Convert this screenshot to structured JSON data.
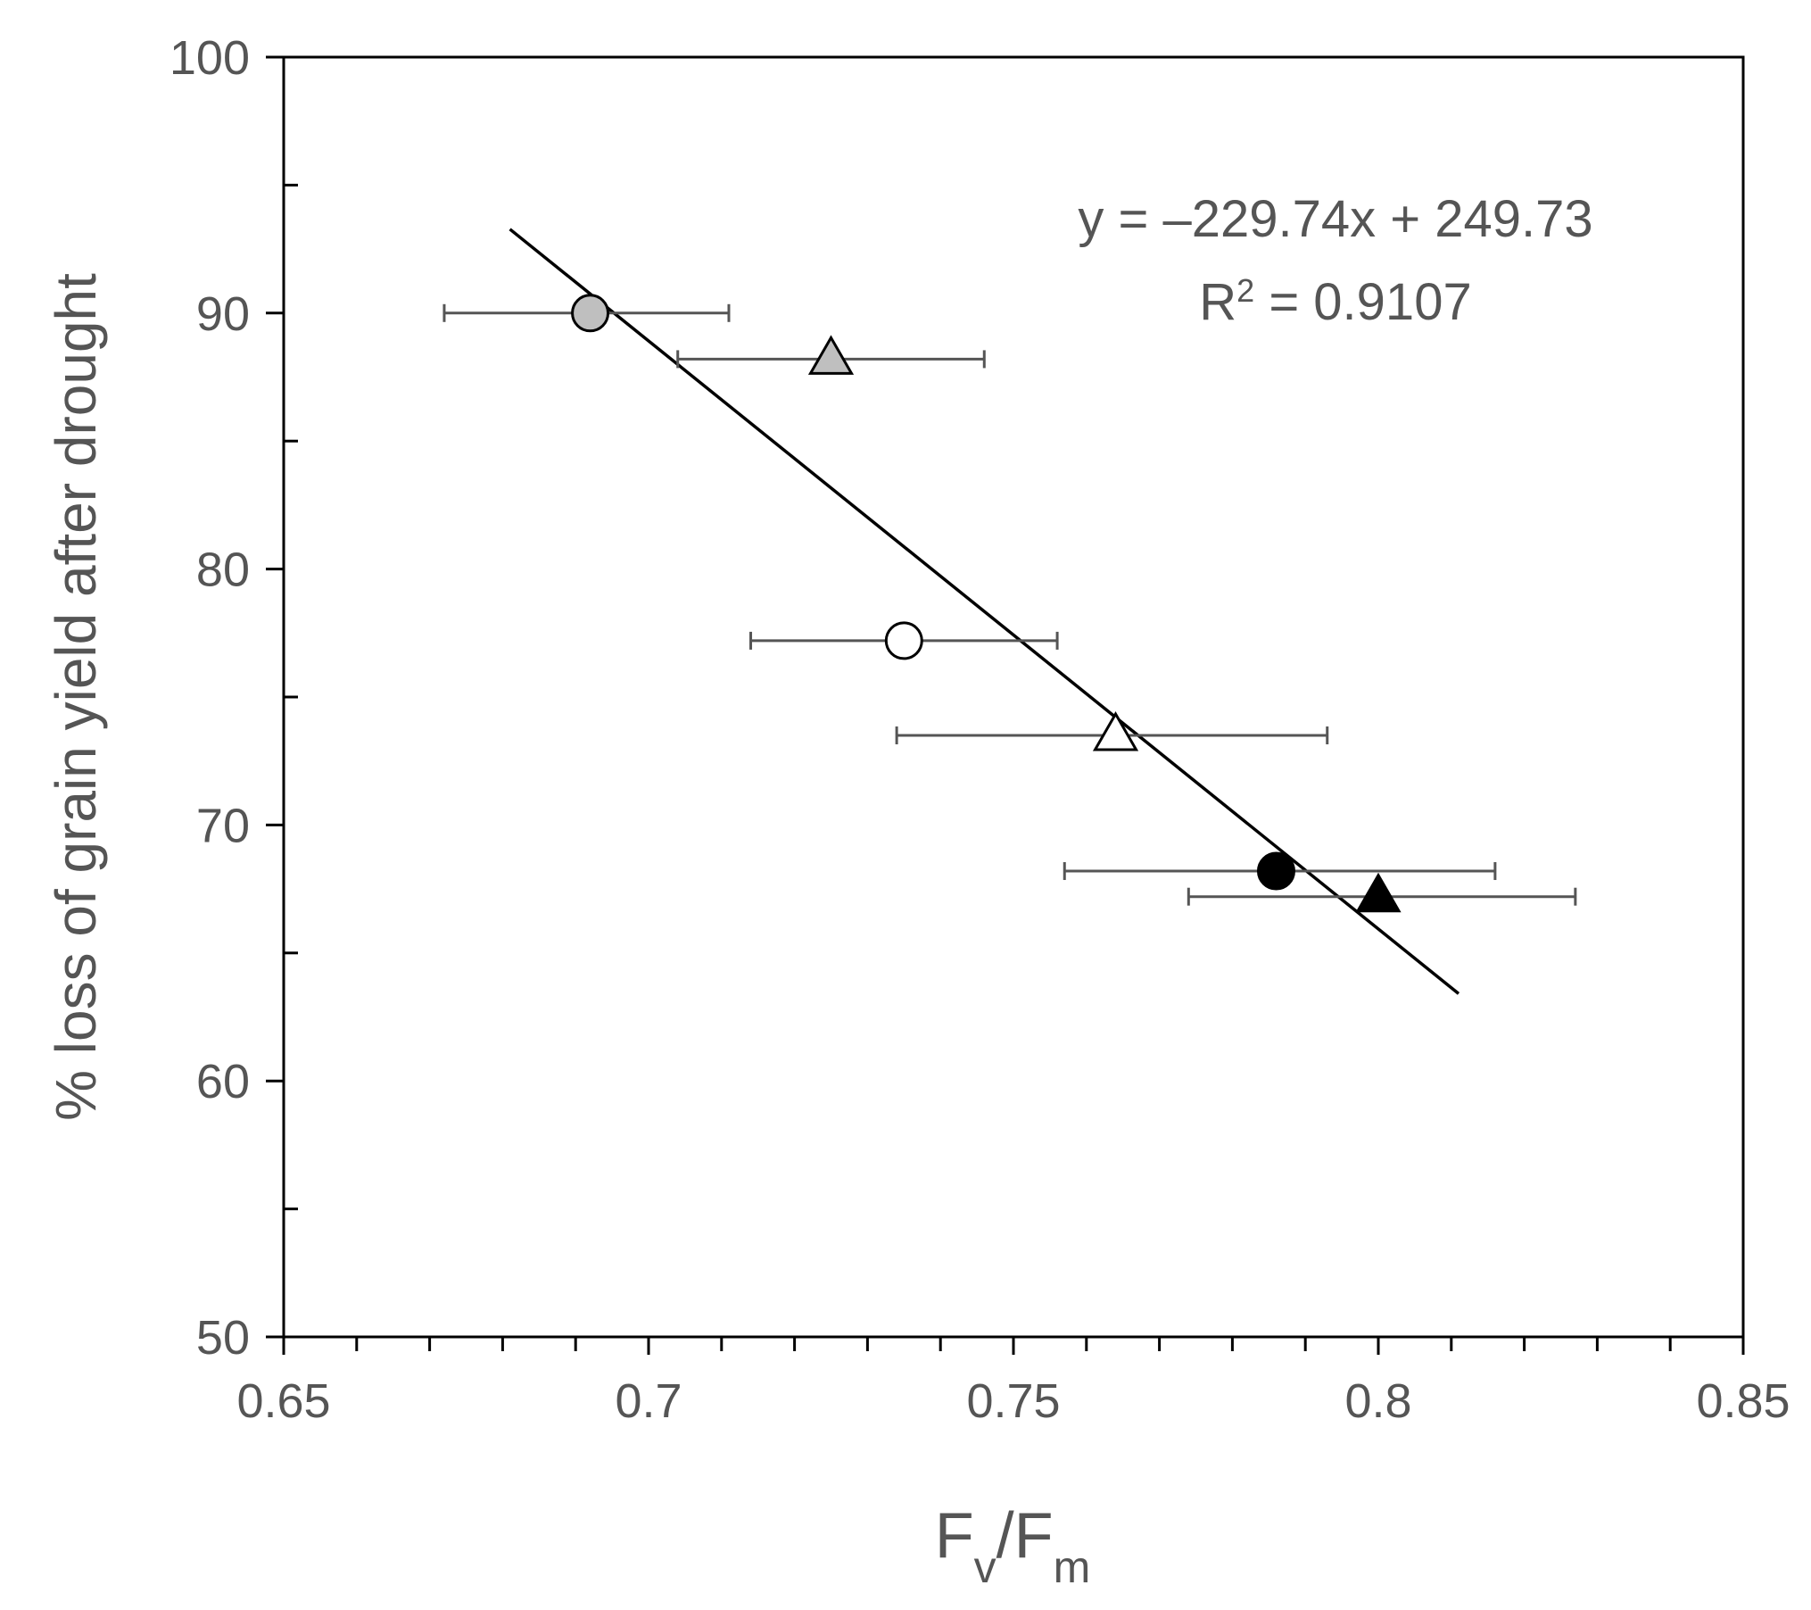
{
  "chart_data": {
    "type": "scatter",
    "xlim": [
      0.65,
      0.85
    ],
    "ylim": [
      50,
      100
    ],
    "x_ticks": [
      "0.65",
      "0.7",
      "0.75",
      "0.8",
      "0.85"
    ],
    "y_ticks": [
      "50",
      "60",
      "70",
      "80",
      "90",
      "100"
    ],
    "xlabel": {
      "main": "F",
      "sub1": "v",
      "sep": "/F",
      "sub2": "m"
    },
    "ylabel": "% loss of grain yield after drought",
    "grid": false,
    "points": [
      {
        "x": 0.692,
        "y": 90.0,
        "x_err_low": 0.672,
        "x_err_high": 0.711,
        "marker": "circle",
        "fill": "#bfbfbf"
      },
      {
        "x": 0.725,
        "y": 88.2,
        "x_err_low": 0.704,
        "x_err_high": 0.746,
        "marker": "triangle",
        "fill": "#bfbfbf"
      },
      {
        "x": 0.735,
        "y": 77.2,
        "x_err_low": 0.714,
        "x_err_high": 0.756,
        "marker": "circle",
        "fill": "#ffffff"
      },
      {
        "x": 0.764,
        "y": 73.5,
        "x_err_low": 0.734,
        "x_err_high": 0.793,
        "marker": "triangle",
        "fill": "#ffffff"
      },
      {
        "x": 0.786,
        "y": 68.2,
        "x_err_low": 0.757,
        "x_err_high": 0.816,
        "marker": "circle",
        "fill": "#000000"
      },
      {
        "x": 0.8,
        "y": 67.2,
        "x_err_low": 0.774,
        "x_err_high": 0.827,
        "marker": "triangle",
        "fill": "#000000"
      }
    ],
    "trendline": {
      "slope": -229.74,
      "intercept": 249.73,
      "x_start": 0.681,
      "x_end": 0.811
    },
    "equation": "y = –229.74x + 249.73",
    "r2_label": "R",
    "r2_sup": "2",
    "r2_value": " = 0.9107"
  }
}
